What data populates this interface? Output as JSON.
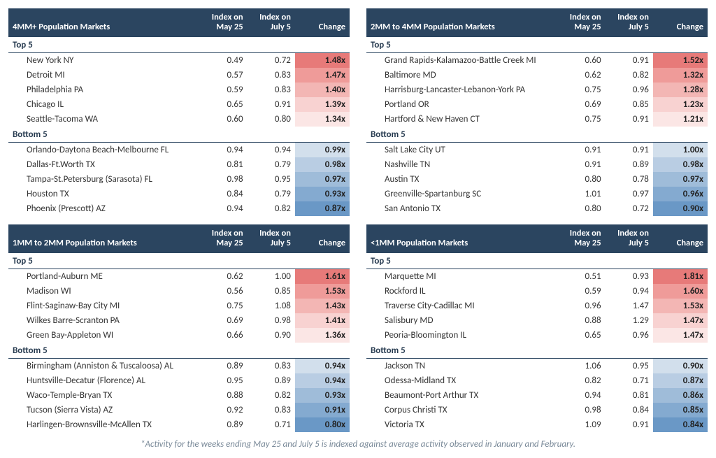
{
  "columns": {
    "market": "",
    "may25_l1": "Index on",
    "may25_l2": "May 25",
    "july5_l1": "Index on",
    "july5_l2": "July 5",
    "change": "Change"
  },
  "section_labels": {
    "top": "Top 5",
    "bottom": "Bottom 5"
  },
  "footnote": "*Activity for the weeks ending May 25 and July 5 is indexed against average activity observed in January and February.",
  "change_colors": {
    "pos5": "#e77a79",
    "pos4": "#ef9b99",
    "pos3": "#f3b6b4",
    "pos2": "#f8d2d1",
    "pos1": "#fbe6e5",
    "neg1": "#d2dfec",
    "neg2": "#b9cde3",
    "neg3": "#9fbcd9",
    "neg4": "#84aad0",
    "neg5": "#6a98c6"
  },
  "panels": [
    {
      "title": "4MM+ Population Markets",
      "top": [
        {
          "market": "New York NY",
          "may": "0.49",
          "jul": "0.72",
          "chg": "1.48x",
          "cc": "pos5"
        },
        {
          "market": "Detroit MI",
          "may": "0.57",
          "jul": "0.83",
          "chg": "1.47x",
          "cc": "pos4"
        },
        {
          "market": "Philadelphia PA",
          "may": "0.59",
          "jul": "0.83",
          "chg": "1.40x",
          "cc": "pos3"
        },
        {
          "market": "Chicago IL",
          "may": "0.65",
          "jul": "0.91",
          "chg": "1.39x",
          "cc": "pos2"
        },
        {
          "market": "Seattle-Tacoma WA",
          "may": "0.60",
          "jul": "0.80",
          "chg": "1.34x",
          "cc": "pos1"
        }
      ],
      "bottom": [
        {
          "market": "Orlando-Daytona Beach-Melbourne FL",
          "may": "0.94",
          "jul": "0.94",
          "chg": "0.99x",
          "cc": "neg1"
        },
        {
          "market": "Dallas-Ft.Worth TX",
          "may": "0.81",
          "jul": "0.79",
          "chg": "0.98x",
          "cc": "neg2"
        },
        {
          "market": "Tampa-St.Petersburg (Sarasota) FL",
          "may": "0.98",
          "jul": "0.95",
          "chg": "0.97x",
          "cc": "neg3"
        },
        {
          "market": "Houston TX",
          "may": "0.84",
          "jul": "0.79",
          "chg": "0.93x",
          "cc": "neg4"
        },
        {
          "market": "Phoenix (Prescott) AZ",
          "may": "0.94",
          "jul": "0.82",
          "chg": "0.87x",
          "cc": "neg5"
        }
      ]
    },
    {
      "title": "2MM to 4MM Population Markets",
      "top": [
        {
          "market": "Grand Rapids-Kalamazoo-Battle Creek MI",
          "may": "0.60",
          "jul": "0.91",
          "chg": "1.52x",
          "cc": "pos5"
        },
        {
          "market": "Baltimore MD",
          "may": "0.62",
          "jul": "0.82",
          "chg": "1.32x",
          "cc": "pos4"
        },
        {
          "market": "Harrisburg-Lancaster-Lebanon-York PA",
          "may": "0.75",
          "jul": "0.96",
          "chg": "1.28x",
          "cc": "pos3"
        },
        {
          "market": "Portland OR",
          "may": "0.69",
          "jul": "0.85",
          "chg": "1.23x",
          "cc": "pos2"
        },
        {
          "market": "Hartford & New Haven CT",
          "may": "0.75",
          "jul": "0.91",
          "chg": "1.21x",
          "cc": "pos1"
        }
      ],
      "bottom": [
        {
          "market": "Salt Lake City UT",
          "may": "0.91",
          "jul": "0.91",
          "chg": "1.00x",
          "cc": "neg1"
        },
        {
          "market": "Nashville TN",
          "may": "0.91",
          "jul": "0.89",
          "chg": "0.98x",
          "cc": "neg2"
        },
        {
          "market": "Austin TX",
          "may": "0.80",
          "jul": "0.78",
          "chg": "0.97x",
          "cc": "neg3"
        },
        {
          "market": "Greenville-Spartanburg SC",
          "may": "1.01",
          "jul": "0.97",
          "chg": "0.96x",
          "cc": "neg4"
        },
        {
          "market": "San Antonio TX",
          "may": "0.80",
          "jul": "0.72",
          "chg": "0.90x",
          "cc": "neg5"
        }
      ]
    },
    {
      "title": "1MM to 2MM Population Markets",
      "top": [
        {
          "market": "Portland-Auburn ME",
          "may": "0.62",
          "jul": "1.00",
          "chg": "1.61x",
          "cc": "pos5"
        },
        {
          "market": "Madison WI",
          "may": "0.56",
          "jul": "0.85",
          "chg": "1.53x",
          "cc": "pos4"
        },
        {
          "market": "Flint-Saginaw-Bay City MI",
          "may": "0.75",
          "jul": "1.08",
          "chg": "1.43x",
          "cc": "pos3"
        },
        {
          "market": "Wilkes Barre-Scranton PA",
          "may": "0.69",
          "jul": "0.98",
          "chg": "1.41x",
          "cc": "pos2"
        },
        {
          "market": "Green Bay-Appleton WI",
          "may": "0.66",
          "jul": "0.90",
          "chg": "1.36x",
          "cc": "pos1"
        }
      ],
      "bottom": [
        {
          "market": "Birmingham (Anniston & Tuscaloosa) AL",
          "may": "0.89",
          "jul": "0.83",
          "chg": "0.94x",
          "cc": "neg1"
        },
        {
          "market": "Huntsville-Decatur (Florence) AL",
          "may": "0.95",
          "jul": "0.89",
          "chg": "0.94x",
          "cc": "neg2"
        },
        {
          "market": "Waco-Temple-Bryan TX",
          "may": "0.88",
          "jul": "0.82",
          "chg": "0.93x",
          "cc": "neg3"
        },
        {
          "market": "Tucson (Sierra Vista) AZ",
          "may": "0.92",
          "jul": "0.83",
          "chg": "0.91x",
          "cc": "neg4"
        },
        {
          "market": "Harlingen-Brownsville-McAllen TX",
          "may": "0.89",
          "jul": "0.71",
          "chg": "0.80x",
          "cc": "neg5"
        }
      ]
    },
    {
      "title": "<1MM Population Markets",
      "top": [
        {
          "market": "Marquette MI",
          "may": "0.51",
          "jul": "0.93",
          "chg": "1.81x",
          "cc": "pos5"
        },
        {
          "market": "Rockford IL",
          "may": "0.59",
          "jul": "0.94",
          "chg": "1.60x",
          "cc": "pos4"
        },
        {
          "market": "Traverse City-Cadillac MI",
          "may": "0.96",
          "jul": "1.47",
          "chg": "1.53x",
          "cc": "pos3"
        },
        {
          "market": "Salisbury MD",
          "may": "0.88",
          "jul": "1.29",
          "chg": "1.47x",
          "cc": "pos2"
        },
        {
          "market": "Peoria-Bloomington IL",
          "may": "0.65",
          "jul": "0.96",
          "chg": "1.47x",
          "cc": "pos1"
        }
      ],
      "bottom": [
        {
          "market": "Jackson TN",
          "may": "1.06",
          "jul": "0.95",
          "chg": "0.90x",
          "cc": "neg1"
        },
        {
          "market": "Odessa-Midland TX",
          "may": "0.82",
          "jul": "0.71",
          "chg": "0.87x",
          "cc": "neg2"
        },
        {
          "market": "Beaumont-Port Arthur TX",
          "may": "0.94",
          "jul": "0.81",
          "chg": "0.86x",
          "cc": "neg3"
        },
        {
          "market": "Corpus Christi TX",
          "may": "0.98",
          "jul": "0.84",
          "chg": "0.85x",
          "cc": "neg4"
        },
        {
          "market": "Victoria TX",
          "may": "1.09",
          "jul": "0.91",
          "chg": "0.84x",
          "cc": "neg5"
        }
      ]
    }
  ]
}
